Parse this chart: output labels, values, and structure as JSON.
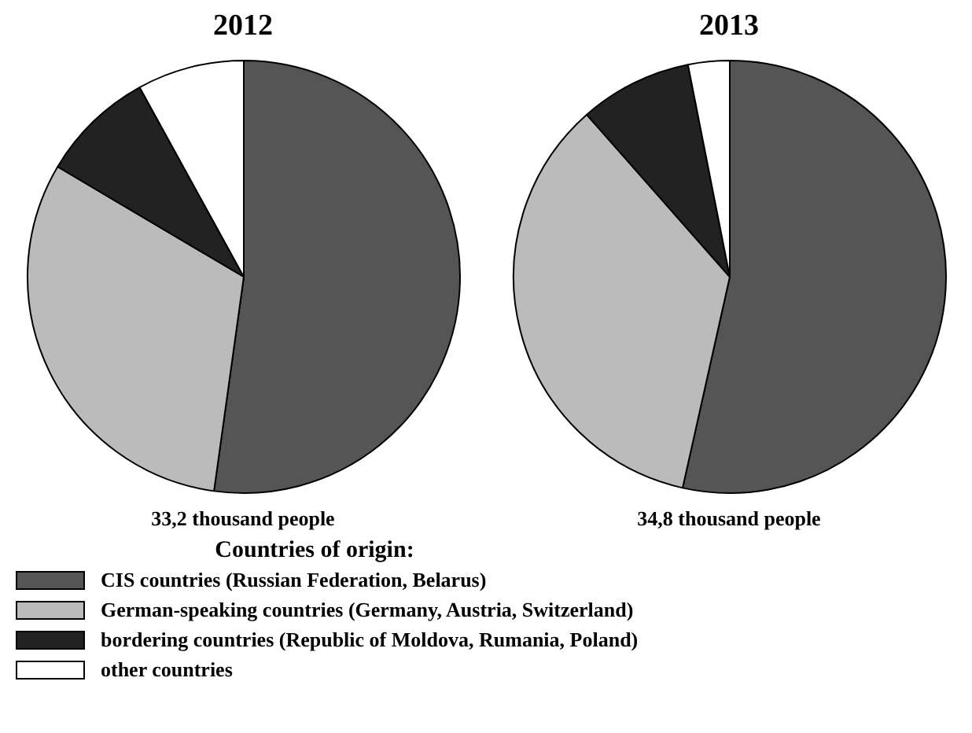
{
  "chart_data": [
    {
      "type": "pie",
      "title": "2012",
      "categories": [
        "CIS countries (Russian Federation, Belarus)",
        "German-speaking countries (Germany, Austria, Switzerland)",
        "bordering countries (Republic of Moldova, Rumania, Poland)",
        "other countries"
      ],
      "values": [
        52.2,
        31.3,
        8.5,
        8.0
      ],
      "colors": [
        "#555555",
        "#bbbbbb",
        "#222222",
        "#ffffff"
      ],
      "annotations": [
        "33,2 thousand people"
      ],
      "legend": "bottom",
      "legend_title": "Countries of origin:"
    },
    {
      "type": "pie",
      "title": "2013",
      "categories": [
        null,
        null,
        null,
        null
      ],
      "values": [
        53.5,
        35.0,
        8.4,
        3.1
      ],
      "colors": [
        "#555555",
        "#bbbbbb",
        "#222222",
        "#ffffff"
      ],
      "annotations": [
        "34,8 thousand people"
      ]
    }
  ]
}
